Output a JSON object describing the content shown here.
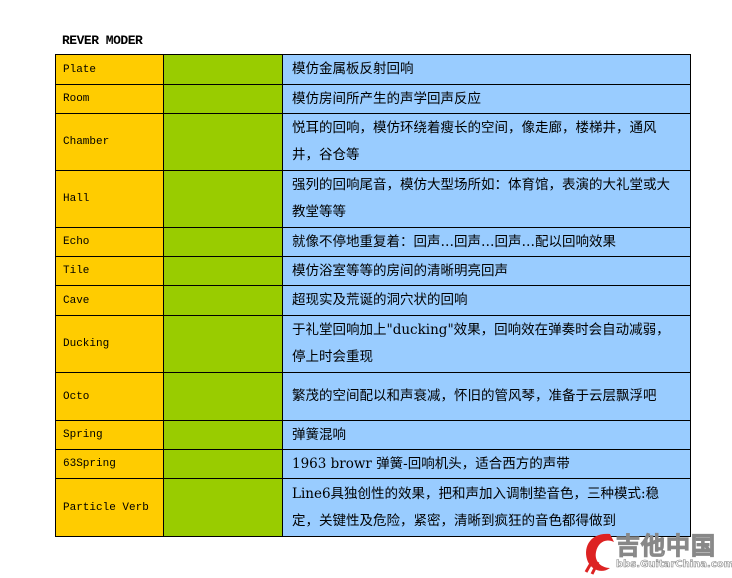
{
  "title": "REVER MODER",
  "colors": {
    "name_col": "#FFCC00",
    "blank_col": "#99CC00",
    "desc_col": "#99CCFF"
  },
  "rows": [
    {
      "name": "Plate",
      "desc": "模仿金属板反射回响"
    },
    {
      "name": "Room",
      "desc": "模仿房间所产生的声学回声反应"
    },
    {
      "name": "Chamber",
      "desc": "悦耳的回响，模仿环绕着瘦长的空间，像走廊，楼梯井，通风井，谷仓等"
    },
    {
      "name": "Hall",
      "desc": "强列的回响尾音，模仿大型场所如：体育馆，表演的大礼堂或大教堂等等"
    },
    {
      "name": "Echo",
      "desc": "就像不停地重复着：回声…回声…回声…配以回响效果"
    },
    {
      "name": "Tile",
      "desc": "模仿浴室等等的房间的清晰明亮回声"
    },
    {
      "name": "Cave",
      "desc": "超现实及荒诞的洞穴状的回响"
    },
    {
      "name": "Ducking",
      "desc": "于礼堂回响加上\"ducking\"效果，回响效在弹奏时会自动减弱，停上时会重现"
    },
    {
      "name": "Octo",
      "desc": "繁茂的空间配以和声衰减，怀旧的管风琴，准备于云层飘浮吧"
    },
    {
      "name": "Spring",
      "desc": "弹簧混响"
    },
    {
      "name": "63Spring",
      "desc": "1963 browr 弹簧-回响机头，适合西方的声带"
    },
    {
      "name": "Particle Verb",
      "desc": "Line6具独创性的效果，把和声加入调制垫音色，三种模式:稳定，关键性及危险，紧密，清晰到疯狂的音色都得做到"
    }
  ],
  "watermark": {
    "text": "吉他中国",
    "url": "bbs.GuitarChina.com"
  }
}
